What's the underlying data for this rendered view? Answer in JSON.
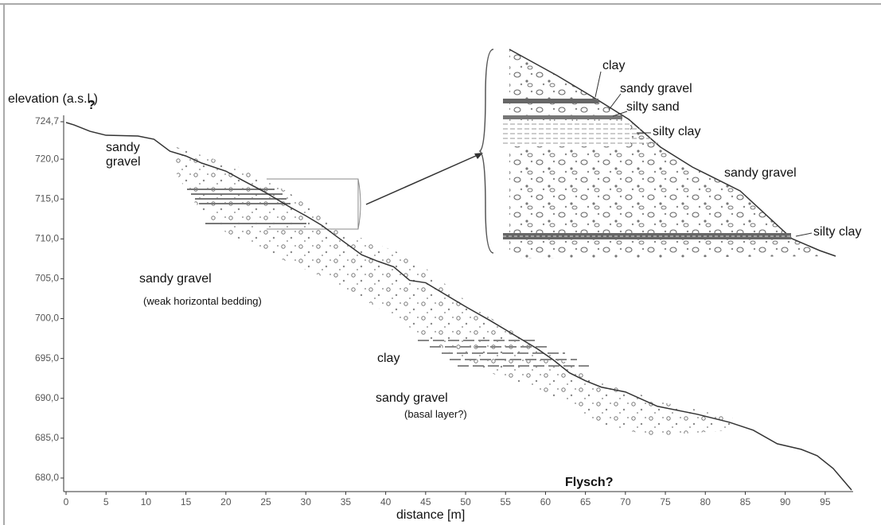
{
  "chart_data": {
    "type": "line",
    "y_label": "elevation (a.s.l.)",
    "x_label": "distance [m]",
    "xlim": [
      -0.3,
      98.5
    ],
    "ylim": [
      678.3,
      725.5
    ],
    "xticks": [
      0,
      5,
      10,
      15,
      20,
      25,
      30,
      35,
      40,
      45,
      50,
      55,
      60,
      65,
      70,
      75,
      80,
      85,
      90,
      95
    ],
    "yticks": [
      {
        "value": 724.7,
        "label": "724,7"
      },
      {
        "value": 720,
        "label": "720,0"
      },
      {
        "value": 715,
        "label": "715,0"
      },
      {
        "value": 710,
        "label": "710,0"
      },
      {
        "value": 705,
        "label": "705,0"
      },
      {
        "value": 700,
        "label": "700,0"
      },
      {
        "value": 695,
        "label": "695,0"
      },
      {
        "value": 690,
        "label": "690,0"
      },
      {
        "value": 685,
        "label": "685,0"
      },
      {
        "value": 680,
        "label": "680,0"
      }
    ],
    "series": [
      {
        "color": "#333333",
        "x": [
          0,
          1,
          3,
          5,
          9,
          11,
          13,
          15,
          17,
          20,
          22,
          25,
          28,
          30,
          32,
          34,
          37,
          39,
          41,
          43,
          45,
          47,
          50,
          53,
          56,
          59,
          61,
          63,
          65,
          67,
          70,
          74,
          79,
          83,
          86,
          89,
          92,
          94,
          96,
          98.3
        ],
        "values": [
          724.6,
          724.3,
          723.5,
          723,
          722.9,
          722.5,
          721,
          720.4,
          719.5,
          718.5,
          717.4,
          715.8,
          714,
          712.9,
          711.7,
          710.2,
          708,
          707.2,
          706.5,
          704.8,
          704.5,
          703.3,
          701.5,
          699.8,
          698,
          696.2,
          694.8,
          693.2,
          692.2,
          691.4,
          690.8,
          689,
          688,
          687,
          686,
          684.3,
          683.6,
          682.8,
          681.2,
          678.5
        ]
      }
    ],
    "annotations": [
      "?",
      "sandy\ngravel",
      "sandy gravel",
      "(weak horizontal bedding)",
      "clay",
      "sandy gravel",
      "(basal layer?)",
      "Flysch?"
    ],
    "inset_labels": [
      "clay",
      "sandy gravel",
      "silty sand",
      "silty clay",
      "sandy gravel",
      "silty clay"
    ]
  }
}
